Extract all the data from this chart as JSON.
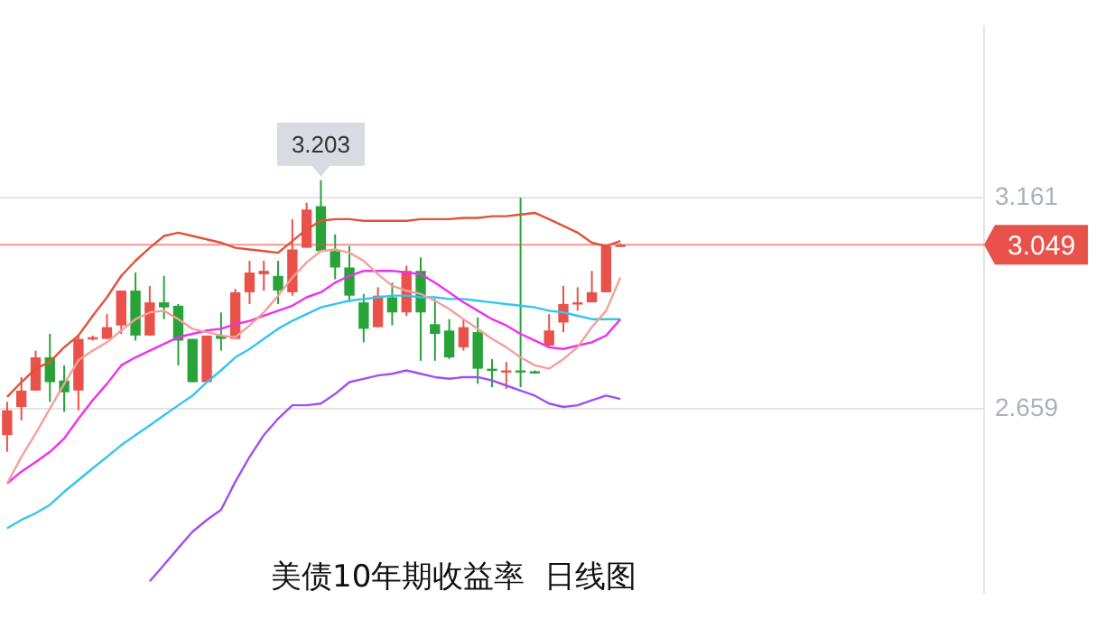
{
  "chart_data": {
    "type": "candlestick",
    "title": "美债10年期收益率  日线图",
    "categories": [
      null,
      null,
      null,
      null,
      null,
      null,
      null,
      null,
      null,
      null,
      null,
      null,
      null,
      null,
      null,
      null,
      null,
      null,
      null,
      null,
      null,
      null,
      null,
      null,
      null,
      null,
      null,
      null,
      null,
      null,
      null,
      null,
      null,
      null,
      null,
      null,
      null,
      null,
      null,
      null,
      null,
      null,
      null,
      null,
      null,
      null,
      null,
      null,
      null,
      null,
      null,
      null,
      null,
      null,
      null,
      null,
      null,
      null,
      null,
      null,
      null,
      null,
      null,
      null,
      null,
      null,
      null,
      null,
      null
    ],
    "ohlc": [
      [
        2.596,
        2.675,
        2.556,
        2.655
      ],
      [
        2.663,
        2.734,
        2.631,
        2.702
      ],
      [
        2.702,
        2.797,
        2.702,
        2.781
      ],
      [
        2.781,
        2.837,
        2.675,
        2.722
      ],
      [
        2.726,
        2.762,
        2.651,
        2.698
      ],
      [
        2.702,
        2.837,
        2.655,
        2.825
      ],
      [
        2.825,
        2.833,
        2.821,
        2.829
      ],
      [
        2.825,
        2.884,
        2.825,
        2.853
      ],
      [
        2.857,
        2.94,
        2.837,
        2.94
      ],
      [
        2.94,
        2.983,
        2.821,
        2.833
      ],
      [
        2.833,
        2.951,
        2.833,
        2.912
      ],
      [
        2.912,
        2.975,
        2.872,
        2.9
      ],
      [
        2.904,
        2.908,
        2.762,
        2.821
      ],
      [
        2.825,
        2.825,
        2.722,
        2.722
      ],
      [
        2.722,
        2.833,
        2.722,
        2.833
      ],
      [
        2.833,
        2.888,
        2.797,
        2.825
      ],
      [
        2.825,
        2.944,
        2.825,
        2.936
      ],
      [
        2.936,
        3.011,
        2.908,
        2.983
      ],
      [
        2.979,
        3.011,
        2.94,
        2.987
      ],
      [
        2.975,
        3.011,
        2.908,
        2.94
      ],
      [
        2.936,
        3.11,
        2.928,
        3.038
      ],
      [
        3.042,
        3.149,
        3.042,
        3.133
      ],
      [
        3.141,
        3.203,
        3.034,
        3.034
      ],
      [
        3.034,
        3.074,
        2.967,
        2.995
      ],
      [
        2.995,
        3.046,
        2.912,
        2.928
      ],
      [
        2.912,
        2.932,
        2.817,
        2.849
      ],
      [
        2.853,
        2.948,
        2.853,
        2.928
      ],
      [
        2.924,
        2.959,
        2.857,
        2.888
      ],
      [
        2.888,
        2.999,
        2.88,
        2.987
      ],
      [
        2.987,
        3.019,
        2.773,
        2.888
      ],
      [
        2.86,
        2.92,
        2.773,
        2.837
      ],
      [
        2.845,
        2.872,
        2.777,
        2.781
      ],
      [
        2.805,
        2.872,
        2.797,
        2.853
      ],
      [
        2.841,
        2.876,
        2.718,
        2.754
      ],
      [
        2.754,
        2.777,
        2.71,
        2.75
      ],
      [
        2.746,
        2.77,
        2.706,
        2.75
      ],
      [
        2.75,
        3.161,
        2.71,
        2.746
      ],
      [
        2.748,
        2.75,
        2.742,
        2.744
      ],
      [
        2.809,
        2.884,
        2.805,
        2.845
      ],
      [
        2.864,
        2.951,
        2.841,
        2.908
      ],
      [
        2.908,
        2.948,
        2.892,
        2.912
      ],
      [
        2.912,
        2.987,
        2.912,
        2.936
      ],
      [
        2.936,
        3.046,
        2.936,
        3.046
      ],
      [
        3.046,
        3.052,
        3.044,
        3.049
      ],
      null,
      null,
      null,
      null,
      null,
      null,
      null,
      null,
      null,
      null,
      null,
      null,
      null,
      null,
      null,
      null,
      null,
      null,
      null,
      null,
      null,
      null,
      null,
      null,
      null
    ],
    "colors": [
      "#e8524a",
      "#e8524a",
      "#e8524a",
      "#27a33a",
      "#27a33a",
      "#e8524a",
      "#e8524a",
      "#e8524a",
      "#e8524a",
      "#27a33a",
      "#e8524a",
      "#27a33a",
      "#27a33a",
      "#27a33a",
      "#e8524a",
      "#27a33a",
      "#e8524a",
      "#e8524a",
      "#e8524a",
      "#27a33a",
      "#e8524a",
      "#e8524a",
      "#27a33a",
      "#27a33a",
      "#27a33a",
      "#27a33a",
      "#e8524a",
      "#27a33a",
      "#e8524a",
      "#27a33a",
      "#27a33a",
      "#27a33a",
      "#e8524a",
      "#27a33a",
      "#27a33a",
      "#e8524a",
      "#27a33a",
      "#27a33a",
      "#e8524a",
      "#e8524a",
      "#e8524a",
      "#e8524a",
      "#e8524a",
      "#e8524a",
      null,
      null,
      null,
      null,
      null,
      null,
      null,
      null,
      null,
      null,
      null,
      null,
      null,
      null,
      null,
      null,
      null,
      null,
      null,
      null,
      null,
      null,
      null,
      null,
      null
    ],
    "series": [
      {
        "type": "line",
        "color": "#e0533a",
        "values": [
          2.687,
          2.722,
          2.754,
          2.77,
          2.805,
          2.833,
          2.88,
          2.924,
          2.975,
          3.011,
          3.042,
          3.07,
          3.078,
          3.07,
          3.062,
          3.054,
          3.042,
          3.038,
          3.034,
          3.03,
          3.058,
          3.086,
          3.106,
          3.11,
          3.11,
          3.106,
          3.106,
          3.106,
          3.106,
          3.11,
          3.11,
          3.11,
          3.113,
          3.113,
          3.117,
          3.117,
          3.121,
          3.125,
          3.11,
          3.094,
          3.078,
          3.054,
          3.046,
          3.058,
          null,
          null,
          null,
          null,
          null,
          null,
          null,
          null,
          null,
          null,
          null,
          null,
          null,
          null,
          null,
          null,
          null,
          null,
          null,
          null,
          null,
          null,
          null,
          null,
          null
        ]
      },
      {
        "type": "line",
        "color": "#f4a09a",
        "values": [
          2.481,
          2.544,
          2.6,
          2.659,
          2.718,
          2.774,
          2.797,
          2.817,
          2.845,
          2.872,
          2.888,
          2.892,
          2.872,
          2.849,
          2.841,
          2.833,
          2.829,
          2.857,
          2.888,
          2.928,
          2.971,
          3.007,
          3.034,
          3.038,
          3.03,
          3.011,
          2.979,
          2.951,
          2.94,
          2.932,
          2.916,
          2.896,
          2.872,
          2.849,
          2.825,
          2.805,
          2.781,
          2.762,
          2.754,
          2.777,
          2.805,
          2.853,
          2.892,
          2.971,
          null,
          null,
          null,
          null,
          null,
          null,
          null,
          null,
          null,
          null,
          null,
          null,
          null,
          null,
          null,
          null,
          null,
          null,
          null,
          null,
          null,
          null,
          null,
          null,
          null
        ]
      },
      {
        "type": "line",
        "color": "#ee30ee",
        "values": [
          2.481,
          2.509,
          2.532,
          2.556,
          2.588,
          2.635,
          2.679,
          2.718,
          2.762,
          2.781,
          2.797,
          2.813,
          2.829,
          2.837,
          2.845,
          2.849,
          2.86,
          2.868,
          2.88,
          2.892,
          2.904,
          2.924,
          2.936,
          2.959,
          2.975,
          2.987,
          2.987,
          2.987,
          2.983,
          2.979,
          2.959,
          2.936,
          2.912,
          2.892,
          2.872,
          2.857,
          2.837,
          2.821,
          2.805,
          2.801,
          2.809,
          2.817,
          2.833,
          2.872,
          null,
          null,
          null,
          null,
          null,
          null,
          null,
          null,
          null,
          null,
          null,
          null,
          null,
          null,
          null,
          null,
          null,
          null,
          null,
          null,
          null,
          null,
          null,
          null,
          null
        ]
      },
      {
        "type": "line",
        "color": "#35c4ee",
        "values": [
          2.374,
          2.394,
          2.41,
          2.43,
          2.461,
          2.489,
          2.517,
          2.544,
          2.572,
          2.596,
          2.619,
          2.643,
          2.667,
          2.69,
          2.722,
          2.75,
          2.781,
          2.801,
          2.825,
          2.849,
          2.868,
          2.884,
          2.9,
          2.908,
          2.916,
          2.92,
          2.924,
          2.928,
          2.928,
          2.924,
          2.924,
          2.92,
          2.92,
          2.916,
          2.912,
          2.908,
          2.904,
          2.9,
          2.892,
          2.888,
          2.88,
          2.872,
          2.872,
          2.872,
          null,
          null,
          null,
          null,
          null,
          null,
          null,
          null,
          null,
          null,
          null,
          null,
          null,
          null,
          null,
          null,
          null,
          null,
          null,
          null,
          null,
          null,
          null,
          null,
          null
        ]
      },
      {
        "type": "line",
        "color": "#a050f0",
        "values": [
          null,
          null,
          null,
          null,
          null,
          null,
          null,
          null,
          null,
          null,
          2.248,
          2.287,
          2.327,
          2.366,
          2.394,
          2.418,
          2.485,
          2.544,
          2.596,
          2.635,
          2.667,
          2.667,
          2.671,
          2.694,
          2.722,
          2.73,
          2.738,
          2.742,
          2.75,
          2.742,
          2.734,
          2.73,
          2.734,
          2.734,
          2.726,
          2.714,
          2.702,
          2.69,
          2.671,
          2.663,
          2.667,
          2.679,
          2.69,
          2.682,
          null,
          null,
          null,
          null,
          null,
          null,
          null,
          null,
          null,
          null,
          null,
          null,
          null,
          null,
          null,
          null,
          null,
          null,
          null,
          null,
          null,
          null,
          null,
          null,
          null
        ]
      }
    ],
    "ylim": [
      2.22,
      3.57
    ],
    "yticks": [
      3.161,
      2.659
    ],
    "grid": "y",
    "legend": false,
    "marker": "none",
    "tick_labels": "y",
    "ref_lines": [
      {
        "axis": "y",
        "value": 3.049,
        "label": "3.049",
        "color": "#e8524a"
      }
    ],
    "annotations": [
      {
        "text": "3.203",
        "y": 3.203
      }
    ]
  }
}
